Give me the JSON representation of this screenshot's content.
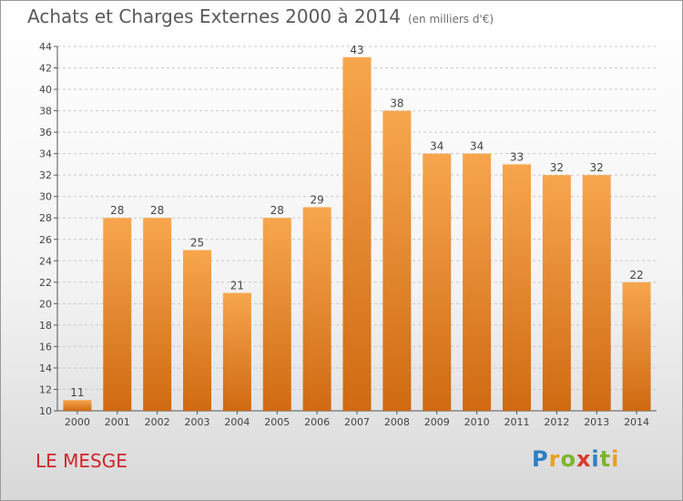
{
  "header": {
    "title": "Achats et Charges Externes 2000 à 2014",
    "subtitle": "(en milliers d'€)"
  },
  "footer": {
    "commune": "LE MESGE",
    "logo": {
      "p": "P",
      "r": "r",
      "o": "o",
      "x": "x",
      "i": "i",
      "t": "t",
      "i2": "i"
    }
  },
  "colors": {
    "bar_top": "#f7a64d",
    "bar_bottom": "#cf6a12",
    "grid": "#c9c9c9",
    "commune": "#d0242b"
  },
  "chart_data": {
    "type": "bar",
    "title": "Achats et Charges Externes 2000 à 2014",
    "subtitle": "(en milliers d'€)",
    "categories": [
      "2000",
      "2001",
      "2002",
      "2003",
      "2004",
      "2005",
      "2006",
      "2007",
      "2008",
      "2009",
      "2010",
      "2011",
      "2012",
      "2013",
      "2014"
    ],
    "values": [
      11,
      28,
      28,
      25,
      21,
      28,
      29,
      43,
      38,
      34,
      34,
      33,
      32,
      32,
      22
    ],
    "ylim": [
      10,
      44
    ],
    "yticks": [
      10,
      12,
      14,
      16,
      18,
      20,
      22,
      24,
      26,
      28,
      30,
      32,
      34,
      36,
      38,
      40,
      42,
      44
    ],
    "grid": true,
    "legend": "none"
  }
}
